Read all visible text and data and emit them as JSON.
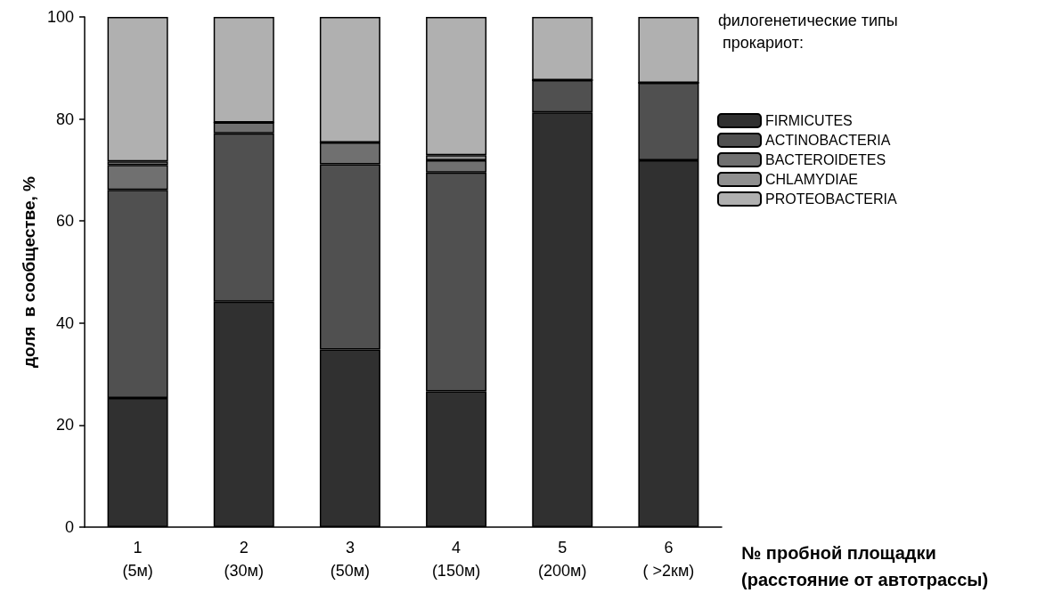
{
  "chart_data": {
    "type": "bar",
    "stacked": true,
    "categories": [
      "1\n(5м)",
      "2\n(30м)",
      "3\n(50м)",
      "4\n(150м)",
      "5\n(200м)",
      "6\n( >2км)"
    ],
    "series": [
      {
        "name": "FIRMICUTES",
        "color": "#303030",
        "values": [
          25.3,
          44.2,
          34.8,
          26.6,
          81.3,
          71.9
        ]
      },
      {
        "name": "ACTINOBACTERIA",
        "color": "#505050",
        "values": [
          40.8,
          33.0,
          36.3,
          42.9,
          6.3,
          15.2
        ]
      },
      {
        "name": "BACTEROIDETES",
        "color": "#707070",
        "values": [
          4.9,
          2.1,
          4.3,
          2.4,
          0,
          0
        ]
      },
      {
        "name": "CHLAMYDIAE",
        "color": "#909090",
        "values": [
          0.7,
          0,
          0,
          1.0,
          0,
          0
        ]
      },
      {
        "name": "PROTEOBACTERIA",
        "color": "#b0b0b0",
        "values": [
          28.3,
          20.7,
          24.6,
          27.1,
          12.4,
          12.9
        ]
      }
    ],
    "ylim": [
      0,
      100
    ],
    "yticks": [
      0,
      20,
      40,
      60,
      80,
      100
    ],
    "ylabel": "доля  в сообществе, %",
    "xlabel": "№ пробной площадки\n(расстояние от автотрассы)",
    "legend_title": "филогенетические типы\n прокариот:",
    "legend": "top right",
    "grid": false
  }
}
